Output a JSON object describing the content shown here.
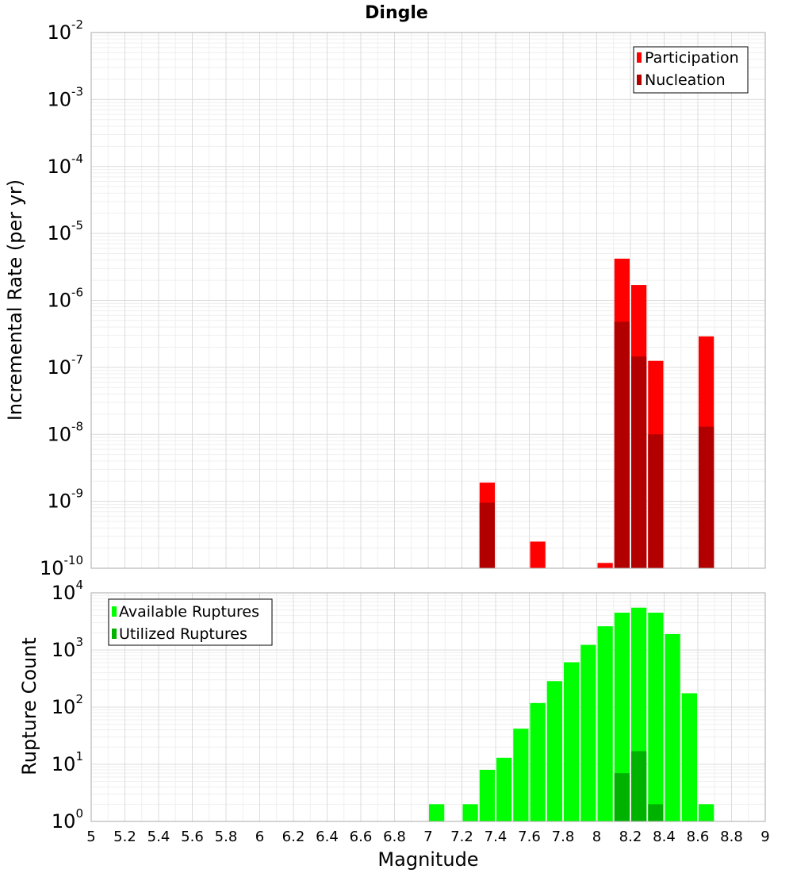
{
  "title": "Dingle",
  "xlabel": "Magnitude",
  "x_ticks": [
    "5",
    "5.2",
    "5.4",
    "5.6",
    "5.8",
    "6",
    "6.2",
    "6.4",
    "6.6",
    "6.8",
    "7",
    "7.2",
    "7.4",
    "7.6",
    "7.8",
    "8",
    "8.2",
    "8.4",
    "8.6",
    "8.8",
    "9"
  ],
  "colors": {
    "participation": "#ff0000",
    "nucleation": "#b20000",
    "available": "#00ff00",
    "utilized": "#00b200"
  },
  "chart_data": [
    {
      "type": "bar",
      "scale": "log",
      "ylabel": "Incremental Rate (per yr)",
      "xlim": [
        5,
        9
      ],
      "ylim": [
        1e-10,
        0.01
      ],
      "y_tick_exponents": [
        -10,
        -9,
        -8,
        -7,
        -6,
        -5,
        -4,
        -3,
        -2
      ],
      "grid": true,
      "legend_position": "top-right",
      "x": [
        7.35,
        7.65,
        8.05,
        8.15,
        8.25,
        8.35,
        8.65
      ],
      "series": [
        {
          "name": "Participation",
          "values": [
            1.9e-09,
            2.5e-10,
            1.2e-10,
            4.2e-06,
            1.7e-06,
            1.25e-07,
            2.9e-07
          ]
        },
        {
          "name": "Nucleation",
          "values": [
            9.5e-10,
            null,
            null,
            4.8e-07,
            1.45e-07,
            1e-08,
            1.3e-08
          ]
        }
      ]
    },
    {
      "type": "bar",
      "scale": "log",
      "ylabel": "Rupture Count",
      "xlim": [
        5,
        9
      ],
      "ylim": [
        1,
        10000
      ],
      "y_tick_exponents": [
        0,
        1,
        2,
        3,
        4
      ],
      "grid": true,
      "legend_position": "top-left",
      "x": [
        7.05,
        7.25,
        7.35,
        7.45,
        7.55,
        7.65,
        7.75,
        7.85,
        7.95,
        8.05,
        8.15,
        8.25,
        8.35,
        8.45,
        8.55,
        8.65
      ],
      "series": [
        {
          "name": "Available Ruptures",
          "values": [
            2,
            2,
            8,
            13,
            42,
            118,
            285,
            610,
            1230,
            2600,
            4500,
            5500,
            4500,
            1900,
            175,
            2
          ]
        },
        {
          "name": "Utilized Ruptures",
          "values": [
            null,
            null,
            1,
            null,
            null,
            1,
            null,
            null,
            1,
            1,
            7,
            17,
            2,
            null,
            null,
            1
          ]
        }
      ]
    }
  ]
}
